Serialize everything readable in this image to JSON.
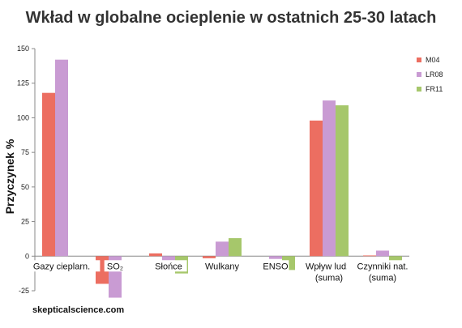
{
  "chart_data": {
    "type": "bar",
    "title": "Wkład w globalne ocieplenie w ostatnich 25-30 latach",
    "ylabel": "Przyczynek %",
    "xlabel": "",
    "ylim": [
      -25,
      150
    ],
    "yticks": [
      150,
      125,
      100,
      75,
      50,
      25,
      0,
      -25
    ],
    "grid": false,
    "legend_position": "right",
    "categories": [
      [
        "Gazy cieplarn."
      ],
      [
        "SO₂"
      ],
      [
        "Słońce"
      ],
      [
        "Wulkany"
      ],
      [
        "ENSO"
      ],
      [
        "Wpływ ludzi",
        "(suma)"
      ],
      [
        "Czynniki nat.",
        "(suma)"
      ]
    ],
    "series": [
      {
        "name": "M04",
        "color": "#ec6e61",
        "values": [
          118,
          -20,
          2,
          -1.5,
          0,
          98,
          0.5
        ]
      },
      {
        "name": "LR08",
        "color": "#c99bd3",
        "values": [
          142,
          -30,
          -3,
          10.5,
          -2,
          112.5,
          4
        ]
      },
      {
        "name": "FR11",
        "color": "#a6c76b",
        "values": [
          0,
          0,
          -12.5,
          13,
          -10,
          109,
          -4
        ]
      }
    ],
    "source_label": "skepticalscience.com"
  }
}
